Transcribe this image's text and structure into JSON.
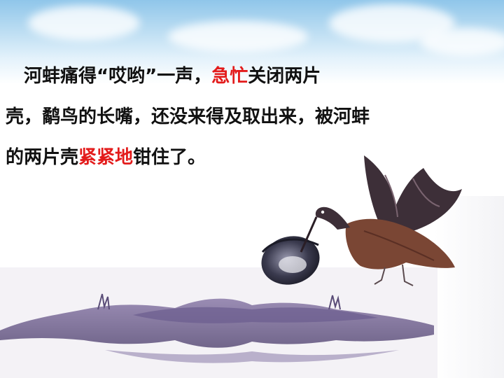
{
  "paragraph": {
    "line1": {
      "indent": "　",
      "part1": "河蚌痛得“哎哟”一声，",
      "hl1": "急忙",
      "part2": "关闭两片"
    },
    "line2": "壳，鹬鸟的长嘴，还没来得及取出来，被河蚌",
    "line3": {
      "part1": "的两片壳",
      "hl2": "紧紧地",
      "part2": "钳住了。"
    }
  },
  "colors": {
    "highlight": "#e31b1b",
    "text": "#111111"
  },
  "illustration": {
    "icons": [
      "heron-icon",
      "clam-icon",
      "riverbank-icon",
      "sky-cloud-icon"
    ]
  }
}
